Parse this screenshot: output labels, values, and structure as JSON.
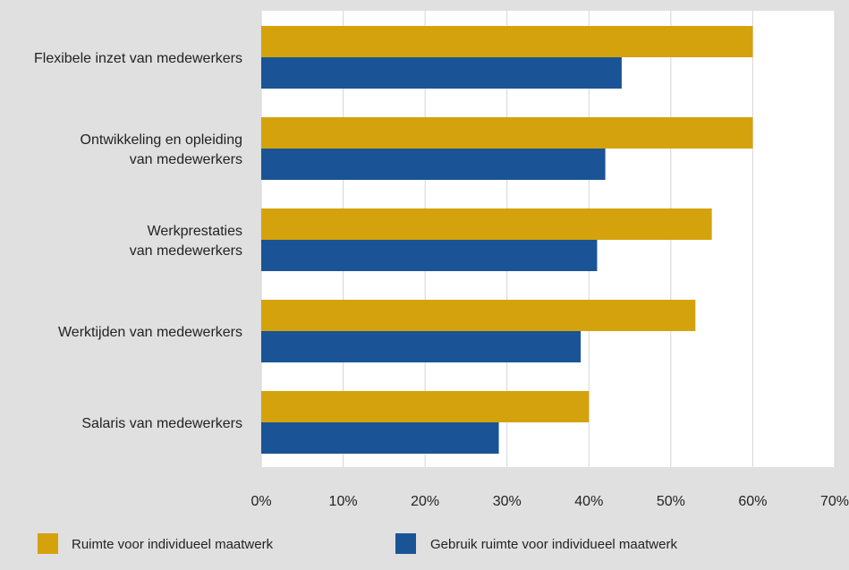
{
  "chart_data": {
    "type": "bar",
    "orientation": "horizontal",
    "categories": [
      [
        "Flexibele inzet van medewerkers"
      ],
      [
        "Ontwikkeling en opleiding",
        "van medewerkers"
      ],
      [
        "Werkprestaties",
        "van medewerkers"
      ],
      [
        "Werktijden van medewerkers"
      ],
      [
        "Salaris van medewerkers"
      ]
    ],
    "series": [
      {
        "name": "Ruimte voor individueel maatwerk",
        "color": "#d4a20c",
        "values": [
          60,
          60,
          55,
          53,
          40
        ]
      },
      {
        "name": "Gebruik ruimte voor individueel maatwerk",
        "color": "#1a5496",
        "values": [
          44,
          42,
          41,
          39,
          29
        ]
      }
    ],
    "xlim": [
      0,
      70
    ],
    "xticks": [
      "0%",
      "10%",
      "20%",
      "30%",
      "40%",
      "50%",
      "60%",
      "70%"
    ],
    "grid": true,
    "legend_position": "bottom"
  }
}
